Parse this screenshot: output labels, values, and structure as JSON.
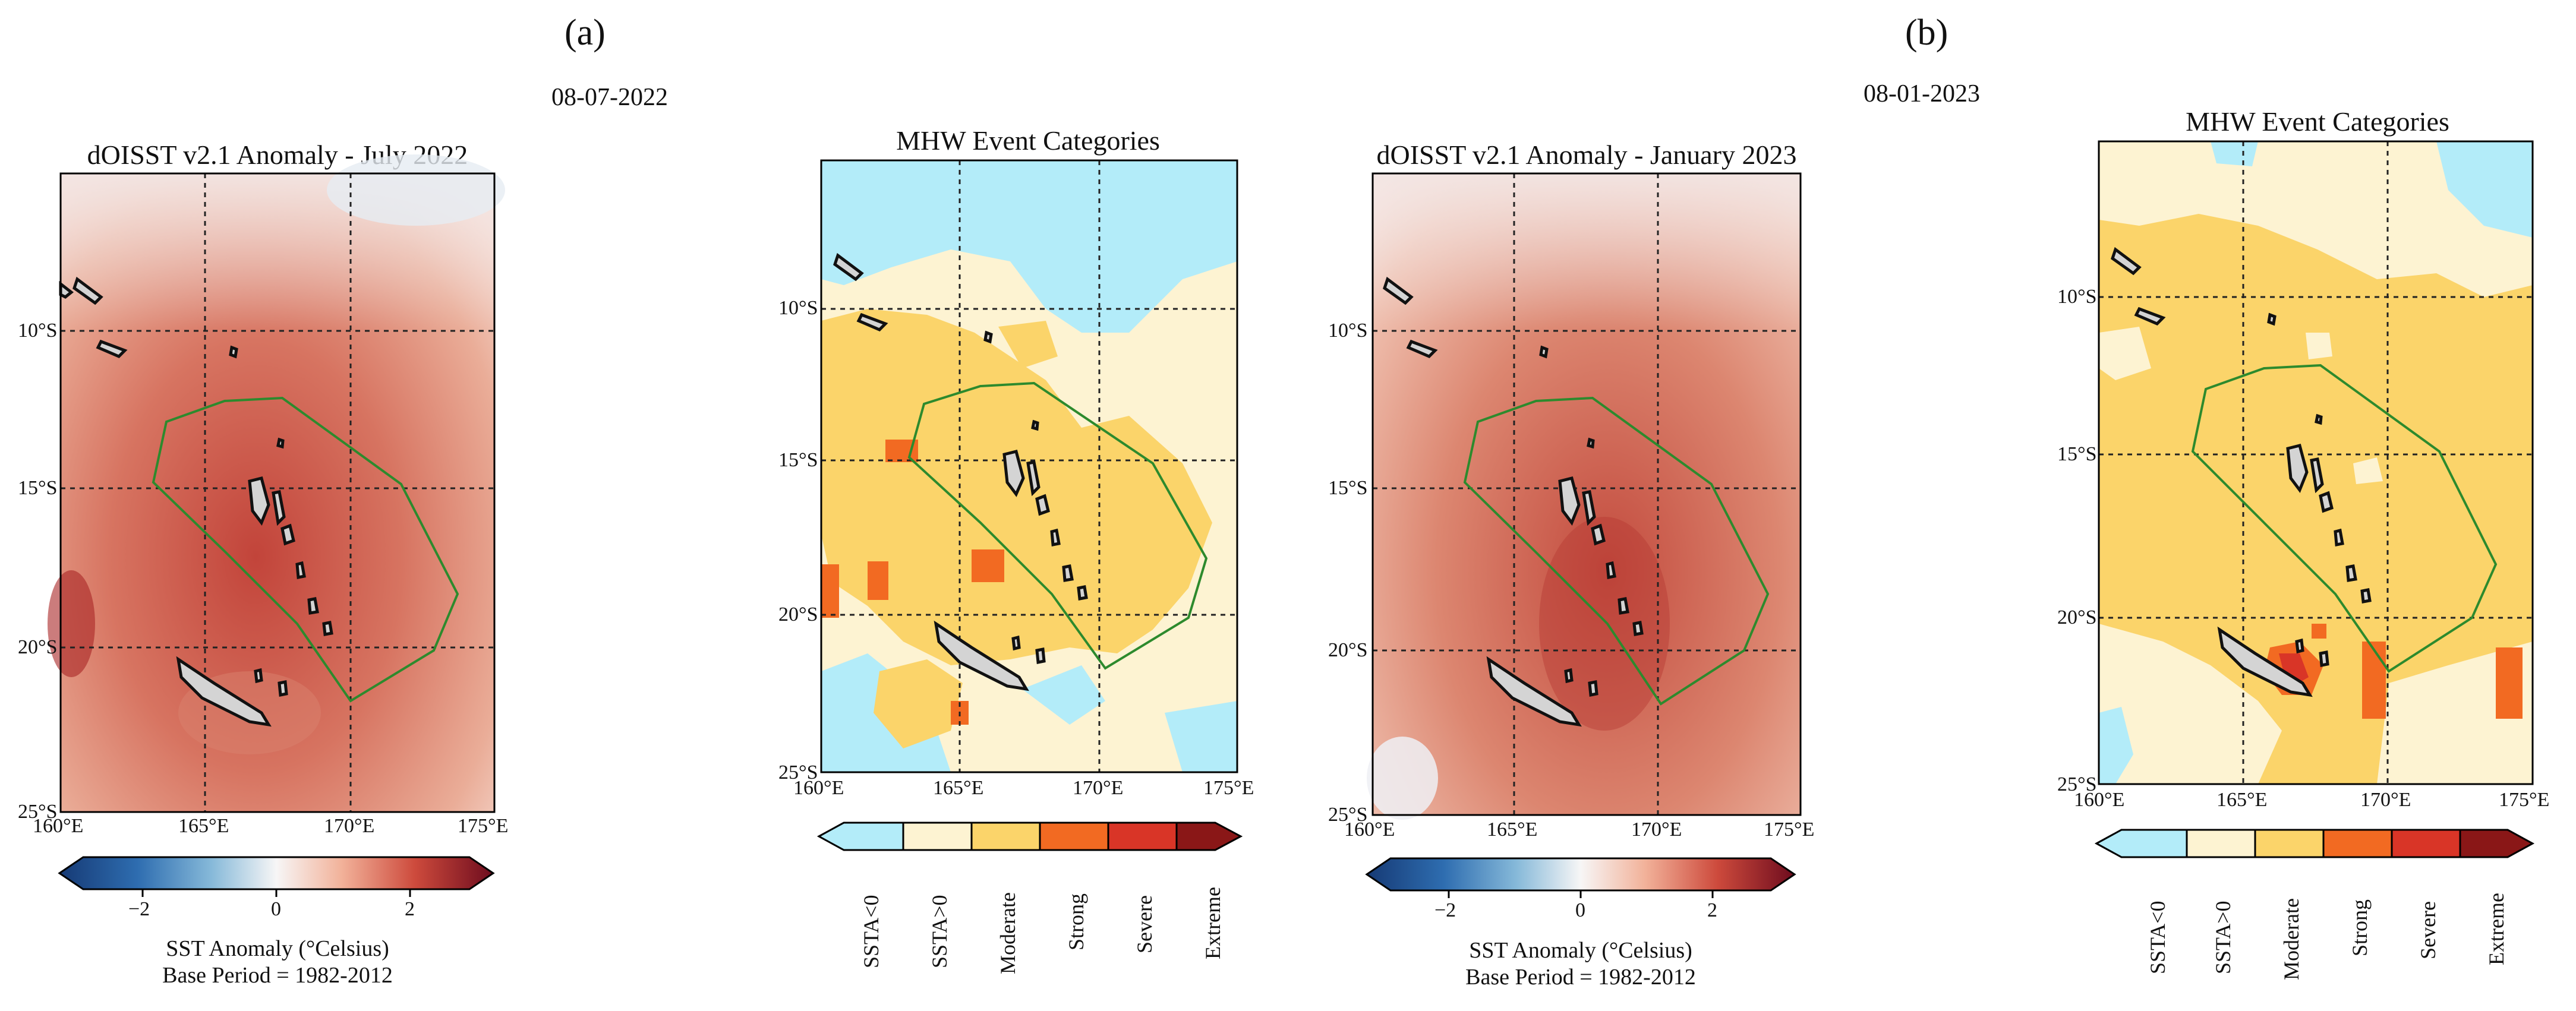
{
  "figure": {
    "panels": [
      {
        "label": "(a)",
        "date": "08-07-2022"
      },
      {
        "label": "(b)",
        "date": "08-01-2023"
      }
    ]
  },
  "maps": [
    {
      "id": "a-anomaly",
      "title": "dOISST v2.1 Anomaly - July 2022",
      "type": "anomaly"
    },
    {
      "id": "a-mhw",
      "title": "MHW Event Categories",
      "type": "categories"
    },
    {
      "id": "b-anomaly",
      "title": "dOISST v2.1 Anomaly - January 2023",
      "type": "anomaly"
    },
    {
      "id": "b-mhw",
      "title": "MHW Event Categories",
      "type": "categories"
    }
  ],
  "axes": {
    "lon_ticks": [
      "160°E",
      "165°E",
      "170°E",
      "175°E"
    ],
    "lat_ticks": [
      "10°S",
      "15°S",
      "20°S",
      "25°S"
    ]
  },
  "anomaly_colorbar": {
    "ticks": [
      "−2",
      "0",
      "2"
    ],
    "label_line1": "SST Anomaly (°Celsius)",
    "label_line2": "Base Period = 1982-2012"
  },
  "category_colorbar": {
    "categories": [
      "SSTA<0",
      "SSTA>0",
      "Moderate",
      "Strong",
      "Severe",
      "Extreme"
    ],
    "colors": [
      "#b3ecf9",
      "#fdf3d2",
      "#fbd46a",
      "#f26a22",
      "#d93527",
      "#8a1717"
    ]
  },
  "colors": {
    "anomaly_dark_red": "#b52a28",
    "anomaly_mid": "#e8a08a",
    "anomaly_light": "#f7dfd6",
    "eez_outline": "#2d8a2d",
    "land": "#d4d4d4"
  }
}
